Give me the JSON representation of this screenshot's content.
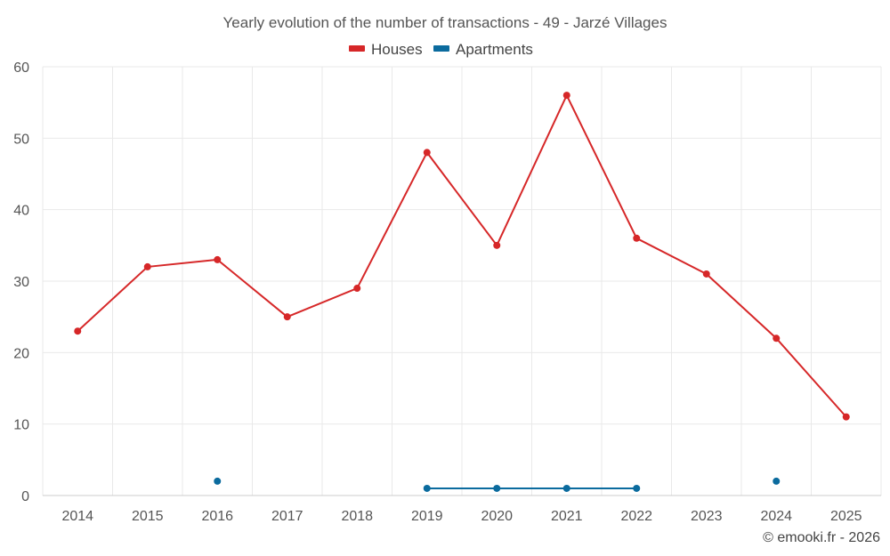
{
  "chart_data": {
    "type": "line",
    "title": "Yearly evolution of the number of transactions - 49 - Jarzé Villages",
    "categories": [
      "2014",
      "2015",
      "2016",
      "2017",
      "2018",
      "2019",
      "2020",
      "2021",
      "2022",
      "2023",
      "2024",
      "2025"
    ],
    "ylim": [
      0,
      60
    ],
    "yticks": [
      0,
      10,
      20,
      30,
      40,
      50,
      60
    ],
    "xlabel": "",
    "ylabel": "",
    "grid": true,
    "legend_position": "top-center",
    "series": [
      {
        "name": "Houses",
        "color": "#d62728",
        "values": [
          23,
          32,
          33,
          25,
          29,
          48,
          35,
          56,
          36,
          31,
          22,
          11
        ]
      },
      {
        "name": "Apartments",
        "color": "#0b6b9e",
        "values": [
          null,
          null,
          2,
          null,
          null,
          1,
          1,
          1,
          1,
          null,
          2,
          null
        ]
      }
    ]
  },
  "credit": "© emooki.fr - 2026"
}
